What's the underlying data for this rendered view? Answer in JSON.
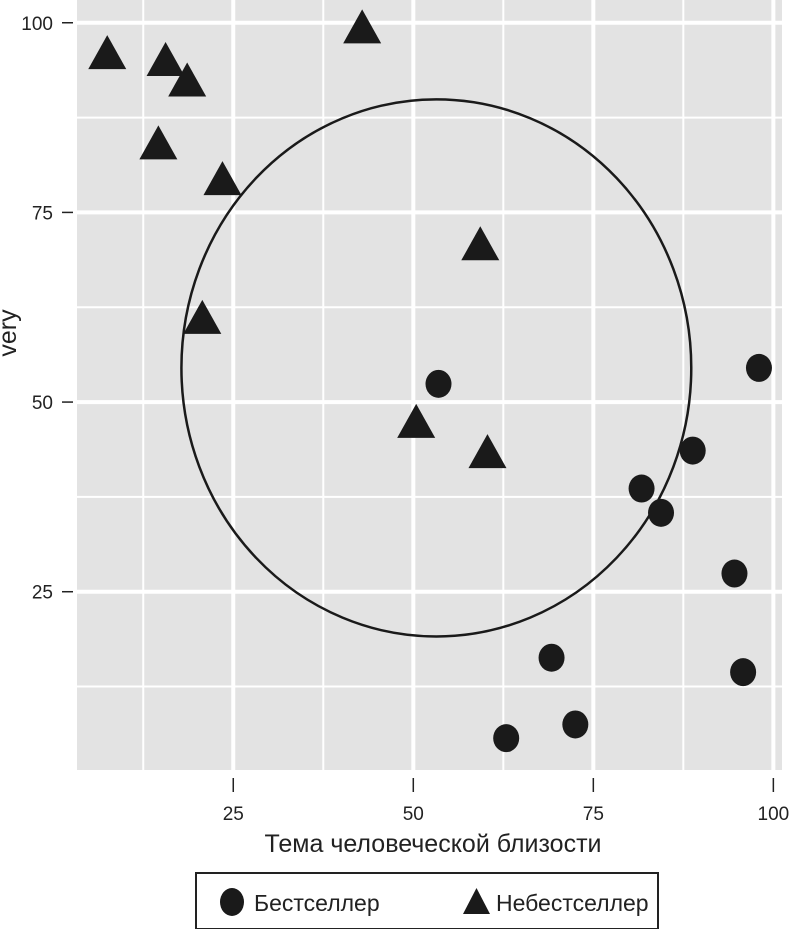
{
  "chart_data": {
    "type": "scatter",
    "xlabel": "Тема человеческой близости",
    "ylabel": "very",
    "xlim": [
      3.3,
      101.2
    ],
    "ylim": [
      1.5,
      103
    ],
    "xticks": [
      25,
      50,
      75,
      100
    ],
    "yticks": [
      25,
      50,
      75,
      100
    ],
    "xtick_labels": [
      "25",
      "50",
      "75",
      "100"
    ],
    "ytick_labels": [
      "25",
      "50",
      "75",
      "100"
    ],
    "grid": true,
    "panel_background": "#e3e3e3",
    "legend_position": "bottom",
    "series": [
      {
        "name": "Бестселлер",
        "marker": "circle",
        "color": "#1a1a1a",
        "points": [
          [
            53.5,
            52.4
          ],
          [
            98,
            54.5
          ],
          [
            88.8,
            43.6
          ],
          [
            81.7,
            38.6
          ],
          [
            84.4,
            35.4
          ],
          [
            94.6,
            27.4
          ],
          [
            95.8,
            14.4
          ],
          [
            69.2,
            16.3
          ],
          [
            72.5,
            7.5
          ],
          [
            62.9,
            5.7
          ]
        ]
      },
      {
        "name": "Небестселлер",
        "marker": "triangle",
        "color": "#1a1a1a",
        "points": [
          [
            7.5,
            95.6
          ],
          [
            15.6,
            94.7
          ],
          [
            18.6,
            92
          ],
          [
            14.6,
            83.7
          ],
          [
            23.5,
            79
          ],
          [
            20.7,
            60.7
          ],
          [
            42.9,
            99
          ],
          [
            59.3,
            70.4
          ],
          [
            50.4,
            47
          ],
          [
            60.3,
            43
          ]
        ]
      }
    ],
    "annotations": [
      {
        "type": "circle",
        "center": [
          53.2,
          54.5
        ],
        "radius": 35.4
      }
    ]
  }
}
